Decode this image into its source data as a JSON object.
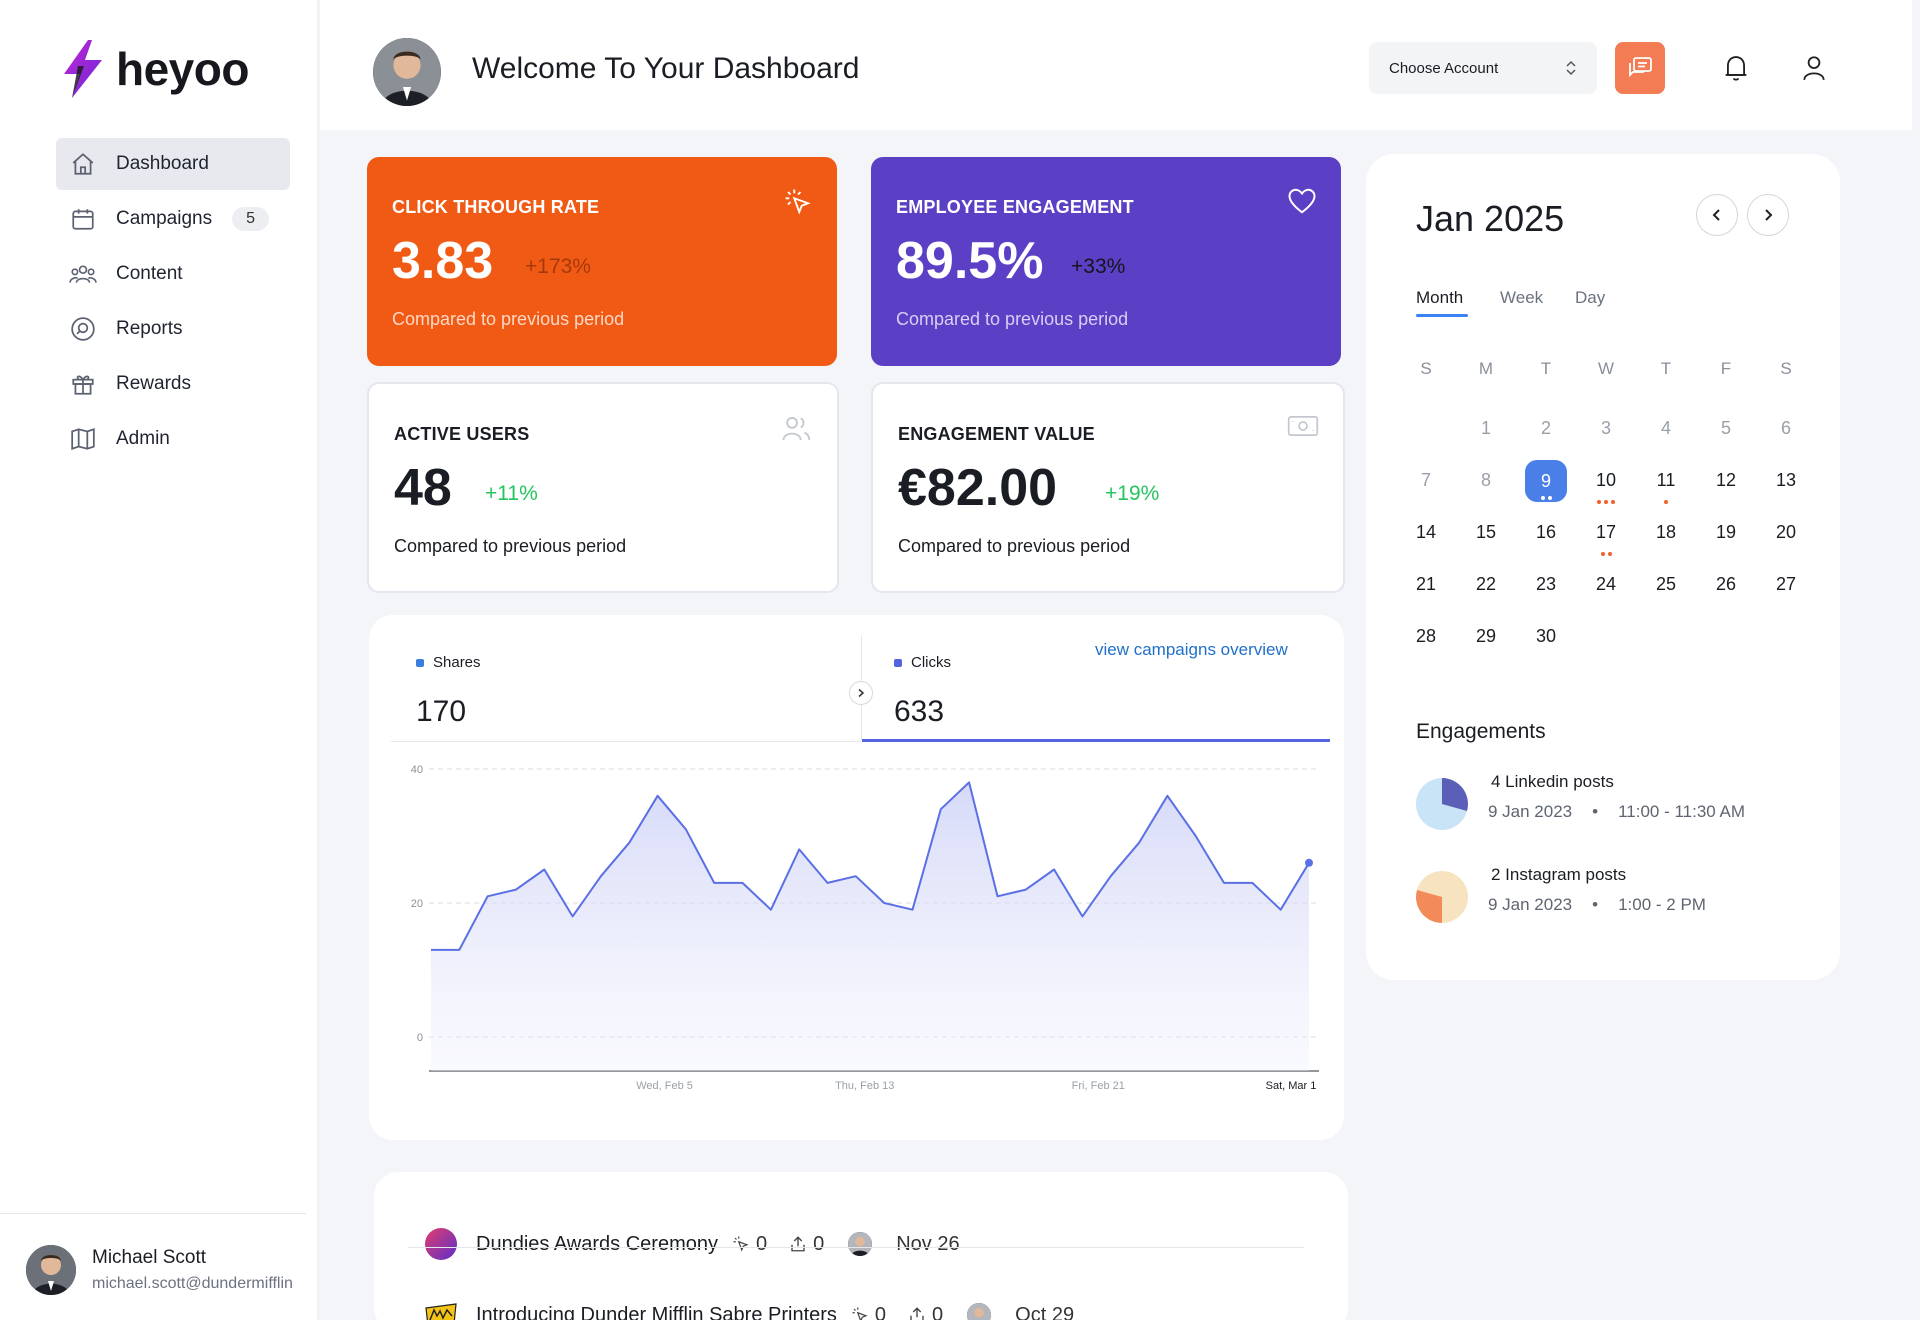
{
  "app": {
    "name": "heyoo"
  },
  "sidebar": {
    "items": [
      {
        "label": "Dashboard",
        "icon": "home-icon",
        "active": true
      },
      {
        "label": "Campaigns",
        "icon": "calendar-icon",
        "badge": "5"
      },
      {
        "label": "Content",
        "icon": "users-group-icon"
      },
      {
        "label": "Reports",
        "icon": "search-report-icon"
      },
      {
        "label": "Rewards",
        "icon": "gift-icon"
      },
      {
        "label": "Admin",
        "icon": "map-icon"
      }
    ],
    "user": {
      "name": "Michael Scott",
      "email": "michael.scott@dundermifflin"
    }
  },
  "header": {
    "title": "Welcome To Your Dashboard",
    "account_select": "Choose Account"
  },
  "stats": {
    "ctr": {
      "title": "CLICK THROUGH RATE",
      "value": "3.83",
      "change": "+173%",
      "sub": "Compared to previous period"
    },
    "engagement": {
      "title": "EMPLOYEE ENGAGEMENT",
      "value": "89.5%",
      "change": "+33%",
      "sub": "Compared to previous period"
    },
    "users": {
      "title": "ACTIVE USERS",
      "value": "48",
      "change": "+11%",
      "sub": "Compared to previous period"
    },
    "value": {
      "title": "ENGAGEMENT VALUE",
      "value": "€82.00",
      "change": "+19%",
      "sub": "Compared to previous period"
    }
  },
  "metrics": {
    "shares": {
      "label": "Shares",
      "value": "170",
      "color": "#3b7ddd"
    },
    "clicks": {
      "label": "Clicks",
      "value": "633",
      "color": "#5563e0"
    },
    "link": "view campaigns overview"
  },
  "chart_data": {
    "type": "area",
    "series": [
      {
        "name": "Clicks",
        "values": [
          13,
          13,
          21,
          22,
          25,
          18,
          24,
          29,
          36,
          31,
          23,
          23,
          19,
          28,
          23,
          24,
          20,
          19,
          34,
          38,
          21,
          22,
          25,
          18,
          24,
          29,
          36,
          30,
          23,
          23,
          19,
          26
        ]
      }
    ],
    "ylim": [
      0,
      40
    ],
    "yticks": [
      "0",
      "20",
      "40"
    ],
    "xticks": [
      "Wed, Feb 5",
      "Thu, Feb 13",
      "Fri, Feb 21",
      "Sat, Mar 1"
    ],
    "grid": true,
    "color": "#5b6fe6"
  },
  "campaigns": [
    {
      "title": "Dundies Awards Ceremony",
      "clicks": "0",
      "shares": "0",
      "date": "Nov 26"
    },
    {
      "title": "Introducing Dunder Mifflin Sabre Printers",
      "clicks": "0",
      "shares": "0",
      "date": "Oct 29"
    }
  ],
  "calendar": {
    "month": "Jan 2025",
    "tabs": [
      "Month",
      "Week",
      "Day"
    ],
    "weekdays": [
      "S",
      "M",
      "T",
      "W",
      "T",
      "F",
      "S"
    ],
    "weeks": [
      [
        "",
        "1",
        "2",
        "3",
        "4",
        "5",
        "6"
      ],
      [
        "7",
        "8",
        "9",
        "10",
        "11",
        "12",
        "13"
      ],
      [
        "14",
        "15",
        "16",
        "17",
        "18",
        "19",
        "20"
      ],
      [
        "21",
        "22",
        "23",
        "24",
        "25",
        "26",
        "27"
      ],
      [
        "28",
        "29",
        "30",
        "",
        "",
        "",
        ""
      ]
    ],
    "selected": "9",
    "engagements_title": "Engagements",
    "engagements": [
      {
        "title": "4 Linkedin posts",
        "date": "9 Jan 2023",
        "time": "11:00 - 11:30 AM",
        "colors": [
          "#c9e3f7",
          "#5b5fb8"
        ],
        "fraction": 0.35
      },
      {
        "title": "2 Instagram posts",
        "date": "9 Jan 2023",
        "time": "1:00 - 2 PM",
        "colors": [
          "#f7e3c0",
          "#f28a5a"
        ],
        "fraction": 0.35
      }
    ]
  }
}
